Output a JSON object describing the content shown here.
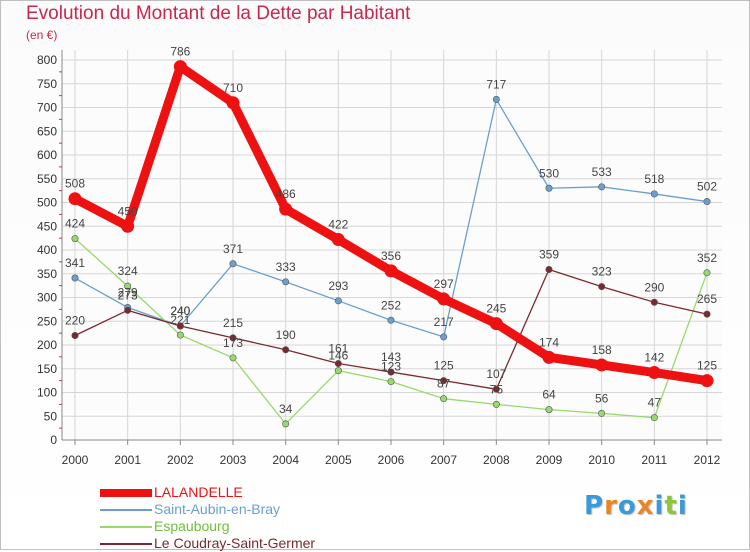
{
  "title": "Evolution du Montant de la Dette par Habitant",
  "subtitle": "(en €)",
  "logo": {
    "text": "Proxiti",
    "letters": [
      "P",
      "r",
      "o",
      "x",
      "i",
      "t",
      "i"
    ],
    "colors": [
      "#3a9ad9",
      "#e8862a",
      "#3a9ad9",
      "#e8862a",
      "#3a9ad9",
      "#8cc63f",
      "#3a9ad9"
    ]
  },
  "chart_data": {
    "type": "line",
    "title": "Evolution du Montant de la Dette par Habitant",
    "subtitle": "(en €)",
    "x": [
      "2000",
      "2001",
      "2002",
      "2003",
      "2004",
      "2005",
      "2006",
      "2007",
      "2008",
      "2009",
      "2010",
      "2011",
      "2012"
    ],
    "ylim": [
      0,
      800
    ],
    "yticks": [
      "0",
      "50",
      "100",
      "150",
      "200",
      "250",
      "300",
      "350",
      "400",
      "450",
      "500",
      "550",
      "600",
      "650",
      "700",
      "750",
      "800"
    ],
    "grid": true,
    "legend_position": "bottom-left",
    "series": [
      {
        "name": "LALANDELLE",
        "color": "#ee1111",
        "values": [
          508,
          450,
          786,
          710,
          486,
          422,
          356,
          297,
          245,
          174,
          158,
          142,
          125
        ]
      },
      {
        "name": "Saint-Aubin-en-Bray",
        "color": "#6a9fd0",
        "values": [
          341,
          279,
          240,
          371,
          333,
          293,
          252,
          217,
          717,
          530,
          533,
          518,
          502
        ]
      },
      {
        "name": "Espaubourg",
        "color": "#98d96b",
        "values": [
          424,
          324,
          221,
          173,
          34,
          146,
          123,
          87,
          75,
          64,
          56,
          47,
          352
        ]
      },
      {
        "name": "Le Coudray-Saint-Germer",
        "color": "#7a2a2e",
        "values": [
          220,
          273,
          240,
          215,
          190,
          161,
          143,
          125,
          107,
          359,
          323,
          290,
          265
        ]
      }
    ],
    "data_labels": [
      [
        "508",
        "450",
        "786",
        "710",
        "486",
        "422",
        "356",
        "297",
        "245",
        "174",
        "158",
        "142",
        "125"
      ],
      [
        "341",
        "279",
        "240",
        "371",
        "333",
        "293",
        "252",
        "217",
        "717",
        "530",
        "533",
        "518",
        "502"
      ],
      [
        "424",
        "324",
        "221",
        "173",
        "34",
        "146",
        "123",
        "87",
        "75",
        "64",
        "56",
        "47",
        "352"
      ],
      [
        "220",
        "273",
        "240",
        "215",
        "190",
        "161",
        "143",
        "125",
        "107",
        "359",
        "323",
        "290",
        "265"
      ]
    ]
  }
}
